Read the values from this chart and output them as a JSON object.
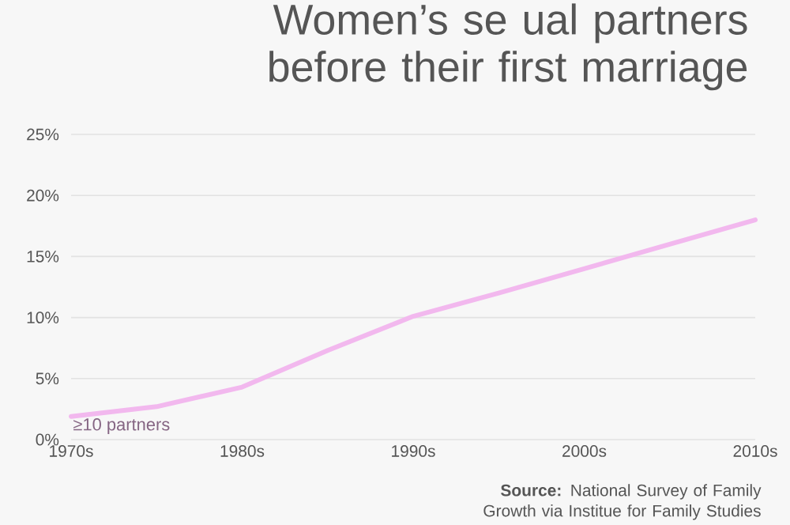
{
  "chart_data": {
    "type": "line",
    "title": "Women’s se ual partners before their first marriage",
    "x": [
      1970,
      1975,
      1980,
      1985,
      1990,
      1995,
      2000,
      2005,
      2010
    ],
    "series": [
      {
        "name": "≥10 partners",
        "color": "#f2b8ee",
        "values": [
          1.9,
          2.7,
          4.3,
          7.3,
          10.1,
          12,
          14,
          16,
          18
        ]
      }
    ],
    "xlim": [
      1970,
      2010
    ],
    "ylim": [
      0,
      25
    ],
    "xticks": [
      {
        "value": 1970,
        "label": "1970s"
      },
      {
        "value": 1980,
        "label": "1980s"
      },
      {
        "value": 1990,
        "label": "1990s"
      },
      {
        "value": 2000,
        "label": "2000s"
      },
      {
        "value": 2010,
        "label": "2010s"
      }
    ],
    "yticks": [
      {
        "value": 0,
        "label": "0%"
      },
      {
        "value": 5,
        "label": "5%"
      },
      {
        "value": 10,
        "label": "10%"
      },
      {
        "value": 15,
        "label": "15%"
      },
      {
        "value": 20,
        "label": "20%"
      },
      {
        "value": 25,
        "label": "25%"
      }
    ],
    "grid": "y",
    "legend": false,
    "marker": "none",
    "line_style": "solid",
    "annotations": [
      "**Source:** National Survey of Family Growth via Institue for Family Studies"
    ]
  }
}
